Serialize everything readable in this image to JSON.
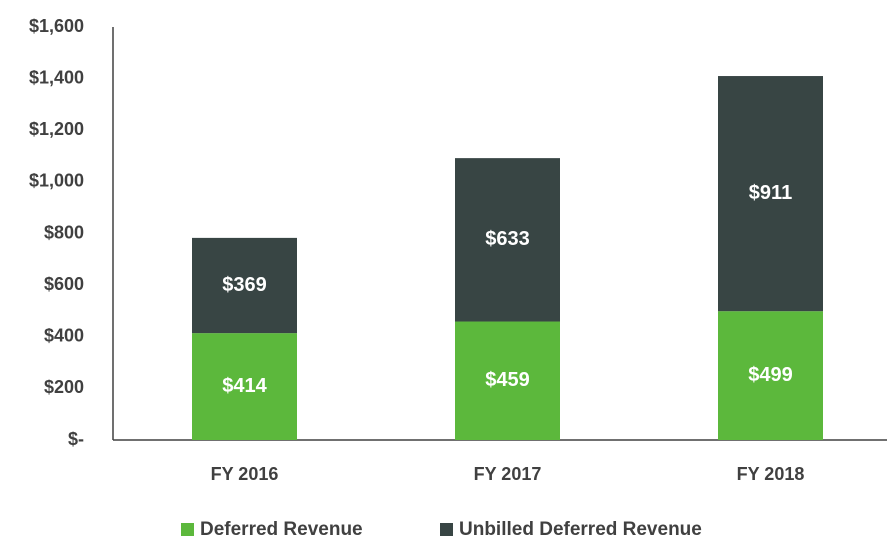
{
  "chart_data": {
    "type": "stacked_bar",
    "categories": [
      "FY 2016",
      "FY 2017",
      "FY 2018"
    ],
    "series": [
      {
        "name": "Deferred Revenue",
        "color": "#5cb83c",
        "values": [
          414,
          459,
          499
        ],
        "value_labels": [
          "$414",
          "$459",
          "$499"
        ]
      },
      {
        "name": "Unbilled Deferred Revenue",
        "color": "#384544",
        "values": [
          369,
          633,
          911
        ],
        "value_labels": [
          "$369",
          "$633",
          "$911"
        ]
      }
    ],
    "ylim": [
      0,
      1600
    ],
    "yticks": [
      {
        "value": 0,
        "label": "$-"
      },
      {
        "value": 200,
        "label": "$200"
      },
      {
        "value": 400,
        "label": "$400"
      },
      {
        "value": 600,
        "label": "$600"
      },
      {
        "value": 800,
        "label": "$800"
      },
      {
        "value": 1000,
        "label": "$1,000"
      },
      {
        "value": 1200,
        "label": "$1,200"
      },
      {
        "value": 1400,
        "label": "$1,400"
      },
      {
        "value": 1600,
        "label": "$1,600"
      }
    ],
    "grid": false,
    "legend": "bottom"
  }
}
